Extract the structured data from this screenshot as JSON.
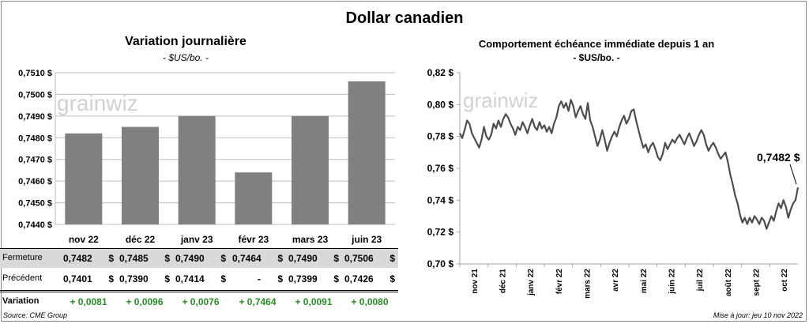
{
  "title": "Dollar canadien",
  "watermark": "grainwiz",
  "left_chart": {
    "title": "Variation  journalière",
    "unit": "- $US/bo. -"
  },
  "right_chart": {
    "title": "Comportement échéance immédiate depuis 1 an",
    "unit": "- $US/bo. -",
    "last_value_label": "0,7482 $"
  },
  "table": {
    "row_labels": [
      "Fermeture",
      "Précédent",
      "Variation"
    ],
    "currency": "$",
    "fermeture": [
      "0,7482",
      "0,7485",
      "0,7490",
      "0,7464",
      "0,7490",
      "0,7506"
    ],
    "precedent": [
      "0,7401",
      "0,7390",
      "0,7414",
      "-",
      "0,7399",
      "0,7426"
    ],
    "variation": [
      "+ 0,0081",
      "+ 0,0096",
      "+ 0,0076",
      "+ 0,7464",
      "+ 0,0091",
      "+ 0,0080"
    ]
  },
  "footer": {
    "source": "Source: CME Group",
    "updated": "Mise à jour: jeu 10 nov 2022"
  },
  "colors": {
    "bar": "#808080",
    "line": "#4d4d4d",
    "positive": "#2a8c2a",
    "table_shade": "#d9d9d9"
  },
  "chart_data": [
    {
      "type": "bar",
      "title": "Variation  journalière",
      "ylabel": "- $US/bo. -",
      "categories": [
        "nov 22",
        "déc 22",
        "janv 23",
        "févr 23",
        "mars 23",
        "juin 23"
      ],
      "values": [
        0.7482,
        0.7485,
        0.749,
        0.7464,
        0.749,
        0.7506
      ],
      "ylim": [
        0.744,
        0.751
      ],
      "yticks": [
        0.744,
        0.745,
        0.746,
        0.747,
        0.748,
        0.749,
        0.75,
        0.751
      ],
      "ytick_labels": [
        "0,7440 $",
        "0,7450 $",
        "0,7460 $",
        "0,7470 $",
        "0,7480 $",
        "0,7490 $",
        "0,7500 $",
        "0,7510 $"
      ],
      "grid": true
    },
    {
      "type": "line",
      "title": "Comportement échéance immédiate depuis 1 an",
      "ylabel": "- $US/bo. -",
      "ylim": [
        0.7,
        0.82
      ],
      "yticks": [
        0.7,
        0.72,
        0.74,
        0.76,
        0.78,
        0.8,
        0.82
      ],
      "ytick_labels": [
        "0,70 $",
        "0,72 $",
        "0,74 $",
        "0,76 $",
        "0,78 $",
        "0,80 $",
        "0,82 $"
      ],
      "x_tick_labels": [
        "nov 21",
        "déc 21",
        "janv 22",
        "févr 22",
        "mars 22",
        "avr 22",
        "mai 22",
        "juin 22",
        "juil 22",
        "août 22",
        "sept 22",
        "oct 22"
      ],
      "grid": false,
      "series": [
        {
          "name": "Dollar canadien",
          "values": [
            0.782,
            0.779,
            0.784,
            0.79,
            0.788,
            0.782,
            0.779,
            0.776,
            0.773,
            0.778,
            0.786,
            0.78,
            0.778,
            0.781,
            0.788,
            0.785,
            0.79,
            0.786,
            0.791,
            0.794,
            0.792,
            0.788,
            0.785,
            0.781,
            0.786,
            0.784,
            0.789,
            0.786,
            0.782,
            0.787,
            0.791,
            0.786,
            0.784,
            0.789,
            0.785,
            0.787,
            0.783,
            0.786,
            0.782,
            0.788,
            0.792,
            0.799,
            0.802,
            0.798,
            0.801,
            0.796,
            0.803,
            0.799,
            0.792,
            0.796,
            0.799,
            0.794,
            0.791,
            0.801,
            0.79,
            0.786,
            0.78,
            0.774,
            0.778,
            0.784,
            0.778,
            0.771,
            0.776,
            0.78,
            0.783,
            0.78,
            0.786,
            0.79,
            0.793,
            0.788,
            0.791,
            0.796,
            0.797,
            0.79,
            0.784,
            0.778,
            0.773,
            0.775,
            0.77,
            0.774,
            0.776,
            0.772,
            0.767,
            0.765,
            0.769,
            0.776,
            0.772,
            0.775,
            0.778,
            0.776,
            0.779,
            0.781,
            0.778,
            0.775,
            0.779,
            0.782,
            0.778,
            0.774,
            0.777,
            0.781,
            0.784,
            0.781,
            0.775,
            0.771,
            0.774,
            0.776,
            0.773,
            0.769,
            0.766,
            0.768,
            0.77,
            0.764,
            0.756,
            0.75,
            0.743,
            0.738,
            0.731,
            0.726,
            0.729,
            0.725,
            0.729,
            0.726,
            0.73,
            0.728,
            0.725,
            0.729,
            0.727,
            0.722,
            0.726,
            0.73,
            0.727,
            0.733,
            0.738,
            0.735,
            0.74,
            0.736,
            0.729,
            0.734,
            0.738,
            0.74,
            0.748
          ]
        }
      ]
    }
  ]
}
